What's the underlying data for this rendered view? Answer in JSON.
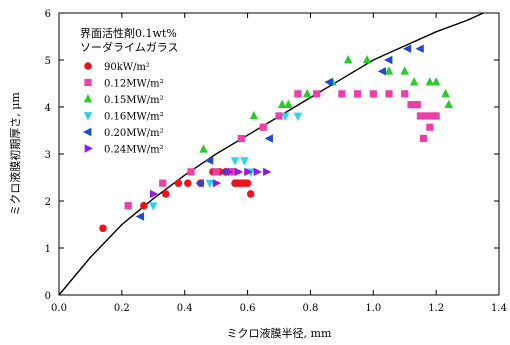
{
  "chart_data": {
    "type": "scatter",
    "annotation_lines": [
      "界面活性剤0.1wt%",
      "ソーダライムガラス"
    ],
    "xlabel": "ミクロ液膜半径, mm",
    "ylabel": "ミクロ液膜初期厚さ, μm",
    "xlim": [
      0,
      1.4
    ],
    "ylim": [
      0,
      6
    ],
    "x_ticks": [
      "0.0",
      "0.2",
      "0.4",
      "0.6",
      "0.8",
      "1.0",
      "1.2",
      "1.4"
    ],
    "y_ticks": [
      "0",
      "1",
      "2",
      "3",
      "4",
      "5",
      "6"
    ],
    "grid": false,
    "legend_position": "top-left",
    "series": [
      {
        "name": "90kW/m²",
        "color": "#e8141e",
        "marker": "circle",
        "points": [
          [
            0.14,
            1.42
          ],
          [
            0.27,
            1.9
          ],
          [
            0.34,
            2.15
          ],
          [
            0.38,
            2.38
          ],
          [
            0.41,
            2.38
          ],
          [
            0.45,
            2.38
          ],
          [
            0.49,
            2.62
          ],
          [
            0.51,
            2.62
          ],
          [
            0.53,
            2.62
          ],
          [
            0.55,
            2.62
          ],
          [
            0.56,
            2.38
          ],
          [
            0.57,
            2.38
          ],
          [
            0.58,
            2.38
          ],
          [
            0.59,
            2.38
          ],
          [
            0.6,
            2.38
          ],
          [
            0.61,
            2.15
          ]
        ]
      },
      {
        "name": "0.12MW/m²",
        "color": "#ee3ea8",
        "marker": "square",
        "points": [
          [
            0.22,
            1.9
          ],
          [
            0.33,
            2.38
          ],
          [
            0.42,
            2.62
          ],
          [
            0.5,
            2.62
          ],
          [
            0.55,
            2.62
          ],
          [
            0.58,
            3.33
          ],
          [
            0.65,
            3.57
          ],
          [
            0.7,
            3.81
          ],
          [
            0.76,
            4.28
          ],
          [
            0.82,
            4.28
          ],
          [
            0.9,
            4.28
          ],
          [
            0.95,
            4.28
          ],
          [
            1.0,
            4.28
          ],
          [
            1.05,
            4.28
          ],
          [
            1.1,
            4.28
          ],
          [
            1.12,
            4.05
          ],
          [
            1.14,
            4.05
          ],
          [
            1.15,
            3.81
          ],
          [
            1.16,
            3.33
          ],
          [
            1.17,
            3.81
          ],
          [
            1.18,
            3.57
          ],
          [
            1.19,
            3.81
          ],
          [
            1.2,
            3.81
          ]
        ]
      },
      {
        "name": "0.15MW/m²",
        "color": "#28cc28",
        "marker": "triangle-up",
        "points": [
          [
            0.46,
            3.1
          ],
          [
            0.62,
            3.81
          ],
          [
            0.71,
            4.05
          ],
          [
            0.73,
            4.05
          ],
          [
            0.79,
            4.28
          ],
          [
            0.87,
            4.53
          ],
          [
            0.92,
            5.0
          ],
          [
            0.98,
            5.0
          ],
          [
            1.05,
            4.76
          ],
          [
            1.1,
            4.76
          ],
          [
            1.13,
            4.53
          ],
          [
            1.18,
            4.53
          ],
          [
            1.2,
            4.53
          ],
          [
            1.23,
            4.28
          ],
          [
            1.24,
            4.05
          ]
        ]
      },
      {
        "name": "0.16MW/m²",
        "color": "#28d4f0",
        "marker": "triangle-down",
        "points": [
          [
            0.3,
            1.9
          ],
          [
            0.48,
            2.38
          ],
          [
            0.56,
            2.86
          ],
          [
            0.59,
            2.86
          ],
          [
            0.61,
            2.62
          ],
          [
            0.72,
            3.81
          ],
          [
            0.76,
            3.81
          ]
        ]
      },
      {
        "name": "0.20MW/m²",
        "color": "#1e46d8",
        "marker": "triangle-left",
        "points": [
          [
            0.26,
            1.67
          ],
          [
            0.45,
            2.38
          ],
          [
            0.48,
            2.86
          ],
          [
            0.53,
            2.62
          ],
          [
            0.67,
            3.33
          ],
          [
            0.86,
            4.53
          ],
          [
            1.03,
            4.76
          ],
          [
            1.05,
            5.0
          ],
          [
            1.11,
            5.24
          ],
          [
            1.15,
            5.24
          ]
        ]
      },
      {
        "name": "0.24MW/m²",
        "color": "#8c1ee0",
        "marker": "triangle-right",
        "points": [
          [
            0.3,
            2.15
          ],
          [
            0.5,
            2.38
          ],
          [
            0.54,
            2.62
          ],
          [
            0.57,
            2.62
          ],
          [
            0.6,
            2.62
          ],
          [
            0.63,
            2.62
          ],
          [
            0.66,
            2.62
          ]
        ]
      }
    ],
    "reference_curve": {
      "color": "#000000",
      "points": [
        [
          0,
          0
        ],
        [
          0.1,
          0.8
        ],
        [
          0.2,
          1.5
        ],
        [
          0.3,
          2.05
        ],
        [
          0.4,
          2.55
        ],
        [
          0.5,
          3.0
        ],
        [
          0.6,
          3.4
        ],
        [
          0.7,
          3.8
        ],
        [
          0.8,
          4.2
        ],
        [
          0.9,
          4.6
        ],
        [
          1.0,
          5.0
        ],
        [
          1.1,
          5.3
        ],
        [
          1.2,
          5.6
        ],
        [
          1.3,
          5.85
        ],
        [
          1.35,
          6.0
        ]
      ]
    }
  }
}
